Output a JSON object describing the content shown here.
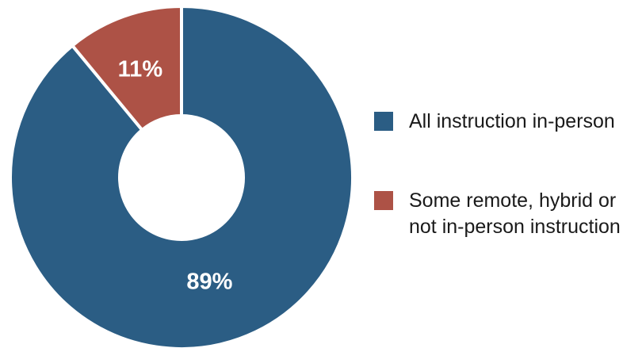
{
  "chart_data": {
    "type": "pie",
    "donut": true,
    "categories": [
      "All instruction in-person",
      "Some remote, hybrid or not in-person instruction"
    ],
    "values": [
      89,
      11
    ],
    "data_labels": [
      "89%",
      "11%"
    ],
    "colors": [
      "#2b5d84",
      "#ad5246"
    ],
    "legend": {
      "placement": "right",
      "entries": [
        {
          "lines": [
            "All instruction in-person"
          ]
        },
        {
          "lines": [
            "Some remote, hybrid or",
            "not in-person instruction"
          ]
        }
      ]
    },
    "title": "",
    "start_angle": "12 o'clock, clockwise"
  }
}
